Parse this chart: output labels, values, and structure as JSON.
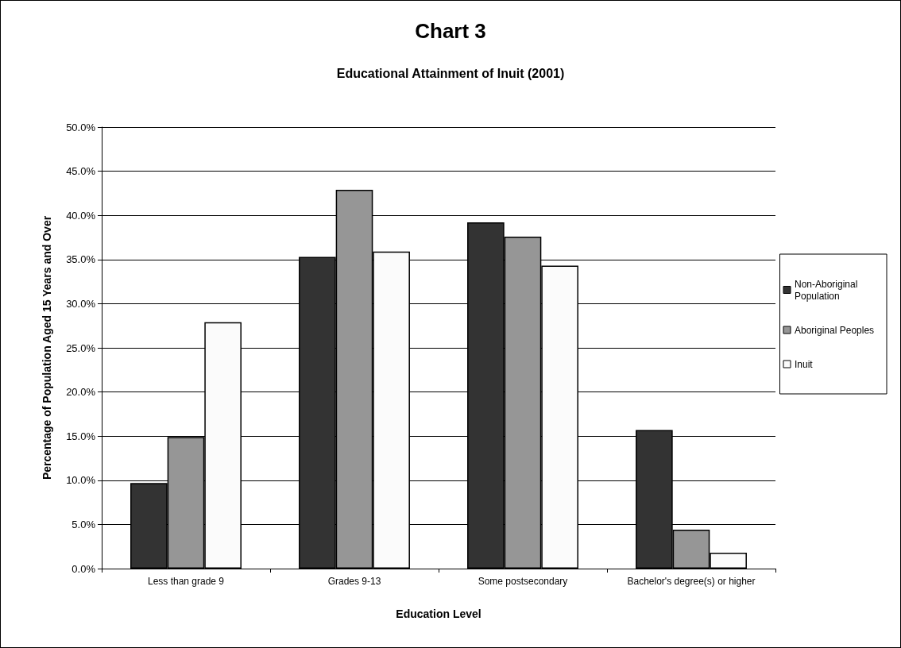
{
  "chart_data": {
    "type": "bar",
    "title": "Chart 3",
    "subtitle": "Educational Attainment of Inuit (2001)",
    "xlabel": "Education Level",
    "ylabel": "Percentage of Population Aged 15 Years and Over",
    "categories": [
      "Less than grade 9",
      "Grades 9-13",
      "Some postsecondary",
      "Bachelor's degree(s) or higher"
    ],
    "series": [
      {
        "name": "Non-Aboriginal Population",
        "color": "#333333",
        "values": [
          9.7,
          35.3,
          39.2,
          15.7
        ]
      },
      {
        "name": "Aboriginal Peoples",
        "color": "#969696",
        "values": [
          14.9,
          42.9,
          37.6,
          4.4
        ]
      },
      {
        "name": "Inuit",
        "color": "#fbfbfb",
        "values": [
          27.9,
          35.9,
          34.3,
          1.8
        ]
      }
    ],
    "ylim": [
      0,
      50
    ],
    "yticks": [
      {
        "value": 0,
        "label": "0.0%"
      },
      {
        "value": 5,
        "label": "5.0%"
      },
      {
        "value": 10,
        "label": "10.0%"
      },
      {
        "value": 15,
        "label": "15.0%"
      },
      {
        "value": 20,
        "label": "20.0%"
      },
      {
        "value": 25,
        "label": "25.0%"
      },
      {
        "value": 30,
        "label": "30.0%"
      },
      {
        "value": 35,
        "label": "35.0%"
      },
      {
        "value": 40,
        "label": "40.0%"
      },
      {
        "value": 45,
        "label": "45.0%"
      },
      {
        "value": 50,
        "label": "50.0%"
      }
    ],
    "grid": "y",
    "legend": "right"
  }
}
